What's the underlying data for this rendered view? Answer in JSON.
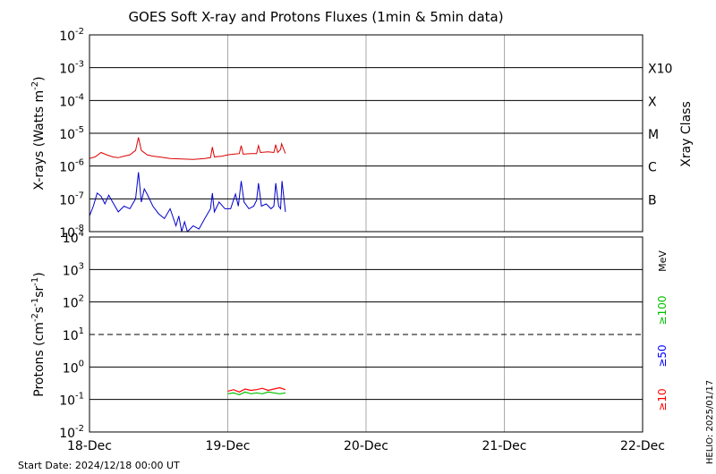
{
  "title": "GOES Soft X-ray and Protons Fluxes   (1min & 5min data)",
  "footer": {
    "start_date": "Start Date: 2024/12/18 00:00 UT",
    "credit": "HELIO: 2025/01/17"
  },
  "colors": {
    "xray_long": "#dd0000",
    "xray_short": "#0000cc",
    "p10": "#ff0000",
    "p50": "#0000ff",
    "p100": "#00c000"
  },
  "chart_data": [
    {
      "type": "line",
      "panel": "xray",
      "ylabel_text": "X-rays (Watts m",
      "ylabel_sup": "-2",
      "ylabel_close": ")",
      "y_scale": "log",
      "ylim": [
        1e-08,
        0.01
      ],
      "y_ticks": [
        {
          "value": 0.01,
          "base": "10",
          "exp": "-2"
        },
        {
          "value": 0.001,
          "base": "10",
          "exp": "-3"
        },
        {
          "value": 0.0001,
          "base": "10",
          "exp": "-4"
        },
        {
          "value": 1e-05,
          "base": "10",
          "exp": "-5"
        },
        {
          "value": 1e-06,
          "base": "10",
          "exp": "-6"
        },
        {
          "value": 1e-07,
          "base": "10",
          "exp": "-7"
        },
        {
          "value": 1e-08,
          "base": "10",
          "exp": "-8"
        }
      ],
      "x_ticks": [
        "18-Dec",
        "19-Dec",
        "20-Dec",
        "21-Dec",
        "22-Dec"
      ],
      "xlim": [
        "2024-12-18",
        "2024-12-22"
      ],
      "right_axis_label": "Xray Class",
      "class_labels": [
        {
          "value": 0.001,
          "label": "X10"
        },
        {
          "value": 0.0001,
          "label": "X"
        },
        {
          "value": 1e-05,
          "label": "M"
        },
        {
          "value": 1e-06,
          "label": "C"
        },
        {
          "value": 1e-07,
          "label": "B"
        }
      ],
      "series": [
        {
          "key": "long",
          "x": [
            "2024-12-18 00:00",
            "2024-12-18 01:00",
            "2024-12-18 02:00",
            "2024-12-18 03:00",
            "2024-12-18 04:00",
            "2024-12-18 05:00",
            "2024-12-18 06:00",
            "2024-12-18 07:00",
            "2024-12-18 08:00",
            "2024-12-18 08:30",
            "2024-12-18 09:00",
            "2024-12-18 10:00",
            "2024-12-18 11:00",
            "2024-12-18 12:00",
            "2024-12-18 14:00",
            "2024-12-18 16:00",
            "2024-12-18 18:00",
            "2024-12-18 20:00",
            "2024-12-18 21:00",
            "2024-12-18 21:20",
            "2024-12-18 21:40",
            "2024-12-18 23:00",
            "2024-12-19 00:00",
            "2024-12-19 01:00",
            "2024-12-19 02:00",
            "2024-12-19 02:20",
            "2024-12-19 02:40",
            "2024-12-19 04:00",
            "2024-12-19 05:00",
            "2024-12-19 05:20",
            "2024-12-19 05:40",
            "2024-12-19 07:00",
            "2024-12-19 08:00",
            "2024-12-19 08:20",
            "2024-12-19 08:40",
            "2024-12-19 09:00",
            "2024-12-19 09:10",
            "2024-12-19 09:20",
            "2024-12-19 10:00"
          ],
          "y": [
            1.7e-06,
            1.9e-06,
            2.6e-06,
            2.2e-06,
            1.9e-06,
            1.8e-06,
            2e-06,
            2.2e-06,
            3e-06,
            7.5e-06,
            3e-06,
            2.2e-06,
            2e-06,
            1.9e-06,
            1.7e-06,
            1.65e-06,
            1.6e-06,
            1.7e-06,
            1.8e-06,
            3.8e-06,
            1.9e-06,
            2e-06,
            2.2e-06,
            2.3e-06,
            2.4e-06,
            4.2e-06,
            2.3e-06,
            2.4e-06,
            2.4e-06,
            4.2e-06,
            2.6e-06,
            2.7e-06,
            2.6e-06,
            4.5e-06,
            2.6e-06,
            3e-06,
            3.2e-06,
            4.8e-06,
            2.4e-06
          ]
        },
        {
          "key": "short",
          "x": [
            "2024-12-18 00:00",
            "2024-12-18 00:40",
            "2024-12-18 01:20",
            "2024-12-18 02:00",
            "2024-12-18 02:40",
            "2024-12-18 03:20",
            "2024-12-18 04:00",
            "2024-12-18 05:00",
            "2024-12-18 06:00",
            "2024-12-18 07:00",
            "2024-12-18 08:00",
            "2024-12-18 08:30",
            "2024-12-18 09:00",
            "2024-12-18 09:30",
            "2024-12-18 10:00",
            "2024-12-18 11:00",
            "2024-12-18 12:00",
            "2024-12-18 13:00",
            "2024-12-18 14:00",
            "2024-12-18 15:00",
            "2024-12-18 15:30",
            "2024-12-18 16:00",
            "2024-12-18 16:30",
            "2024-12-18 17:00",
            "2024-12-18 18:00",
            "2024-12-18 19:00",
            "2024-12-18 20:00",
            "2024-12-18 21:00",
            "2024-12-18 21:20",
            "2024-12-18 21:40",
            "2024-12-18 22:30",
            "2024-12-18 23:30",
            "2024-12-19 00:30",
            "2024-12-19 01:20",
            "2024-12-19 01:50",
            "2024-12-19 02:20",
            "2024-12-19 02:50",
            "2024-12-19 03:40",
            "2024-12-19 04:30",
            "2024-12-19 05:00",
            "2024-12-19 05:20",
            "2024-12-19 05:50",
            "2024-12-19 06:40",
            "2024-12-19 07:30",
            "2024-12-19 08:00",
            "2024-12-19 08:20",
            "2024-12-19 08:50",
            "2024-12-19 09:10",
            "2024-12-19 09:25",
            "2024-12-19 10:00"
          ],
          "y": [
            3e-08,
            6e-08,
            1.5e-07,
            1.2e-07,
            7e-08,
            1.3e-07,
            8e-08,
            4e-08,
            6e-08,
            5e-08,
            1e-07,
            6.5e-07,
            8e-08,
            2e-07,
            1.4e-07,
            6e-08,
            3.5e-08,
            2.5e-08,
            5e-08,
            1.5e-08,
            3e-08,
            1e-08,
            2e-08,
            1e-08,
            1.5e-08,
            1.2e-08,
            2.5e-08,
            5e-08,
            1.5e-07,
            4e-08,
            8e-08,
            5e-08,
            5e-08,
            1.4e-07,
            6e-08,
            3.5e-07,
            8e-08,
            5e-08,
            6e-08,
            9e-08,
            3e-07,
            6e-08,
            7e-08,
            5e-08,
            6e-08,
            3e-07,
            6e-08,
            5e-08,
            3.5e-07,
            4e-08
          ]
        }
      ]
    },
    {
      "type": "line",
      "panel": "protons",
      "ylabel_text": "Protons (cm",
      "ylabel_sup1": "-2",
      "ylabel_mid1": "s",
      "ylabel_sup2": "-1",
      "ylabel_mid2": "sr",
      "ylabel_sup3": "-1",
      "ylabel_close": ")",
      "y_scale": "log",
      "ylim": [
        0.01,
        10000
      ],
      "y_ticks": [
        {
          "value": 10000,
          "base": "10",
          "exp": "4"
        },
        {
          "value": 1000,
          "base": "10",
          "exp": "3"
        },
        {
          "value": 100,
          "base": "10",
          "exp": "2"
        },
        {
          "value": 10,
          "base": "10",
          "exp": "1"
        },
        {
          "value": 1,
          "base": "10",
          "exp": "0"
        },
        {
          "value": 0.1,
          "base": "10",
          "exp": "-1"
        },
        {
          "value": 0.01,
          "base": "10",
          "exp": "-2"
        }
      ],
      "threshold": 10,
      "energy_unit": "MeV",
      "legend": {
        "p100": "≥100",
        "p50": "≥50",
        "p10": "≥10"
      },
      "series": [
        {
          "key": "p10",
          "x": [
            "2024-12-19 00:00",
            "2024-12-19 01:00",
            "2024-12-19 02:00",
            "2024-12-19 03:00",
            "2024-12-19 04:00",
            "2024-12-19 05:00",
            "2024-12-19 06:00",
            "2024-12-19 07:00",
            "2024-12-19 08:00",
            "2024-12-19 09:00",
            "2024-12-19 10:00"
          ],
          "y": [
            0.18,
            0.2,
            0.17,
            0.21,
            0.19,
            0.2,
            0.22,
            0.19,
            0.21,
            0.23,
            0.2
          ]
        },
        {
          "key": "p100",
          "x": [
            "2024-12-19 00:00",
            "2024-12-19 01:00",
            "2024-12-19 02:00",
            "2024-12-19 03:00",
            "2024-12-19 04:00",
            "2024-12-19 05:00",
            "2024-12-19 06:00",
            "2024-12-19 07:00",
            "2024-12-19 08:00",
            "2024-12-19 09:00",
            "2024-12-19 10:00"
          ],
          "y": [
            0.15,
            0.16,
            0.14,
            0.17,
            0.15,
            0.16,
            0.15,
            0.17,
            0.16,
            0.15,
            0.16
          ]
        }
      ]
    }
  ]
}
